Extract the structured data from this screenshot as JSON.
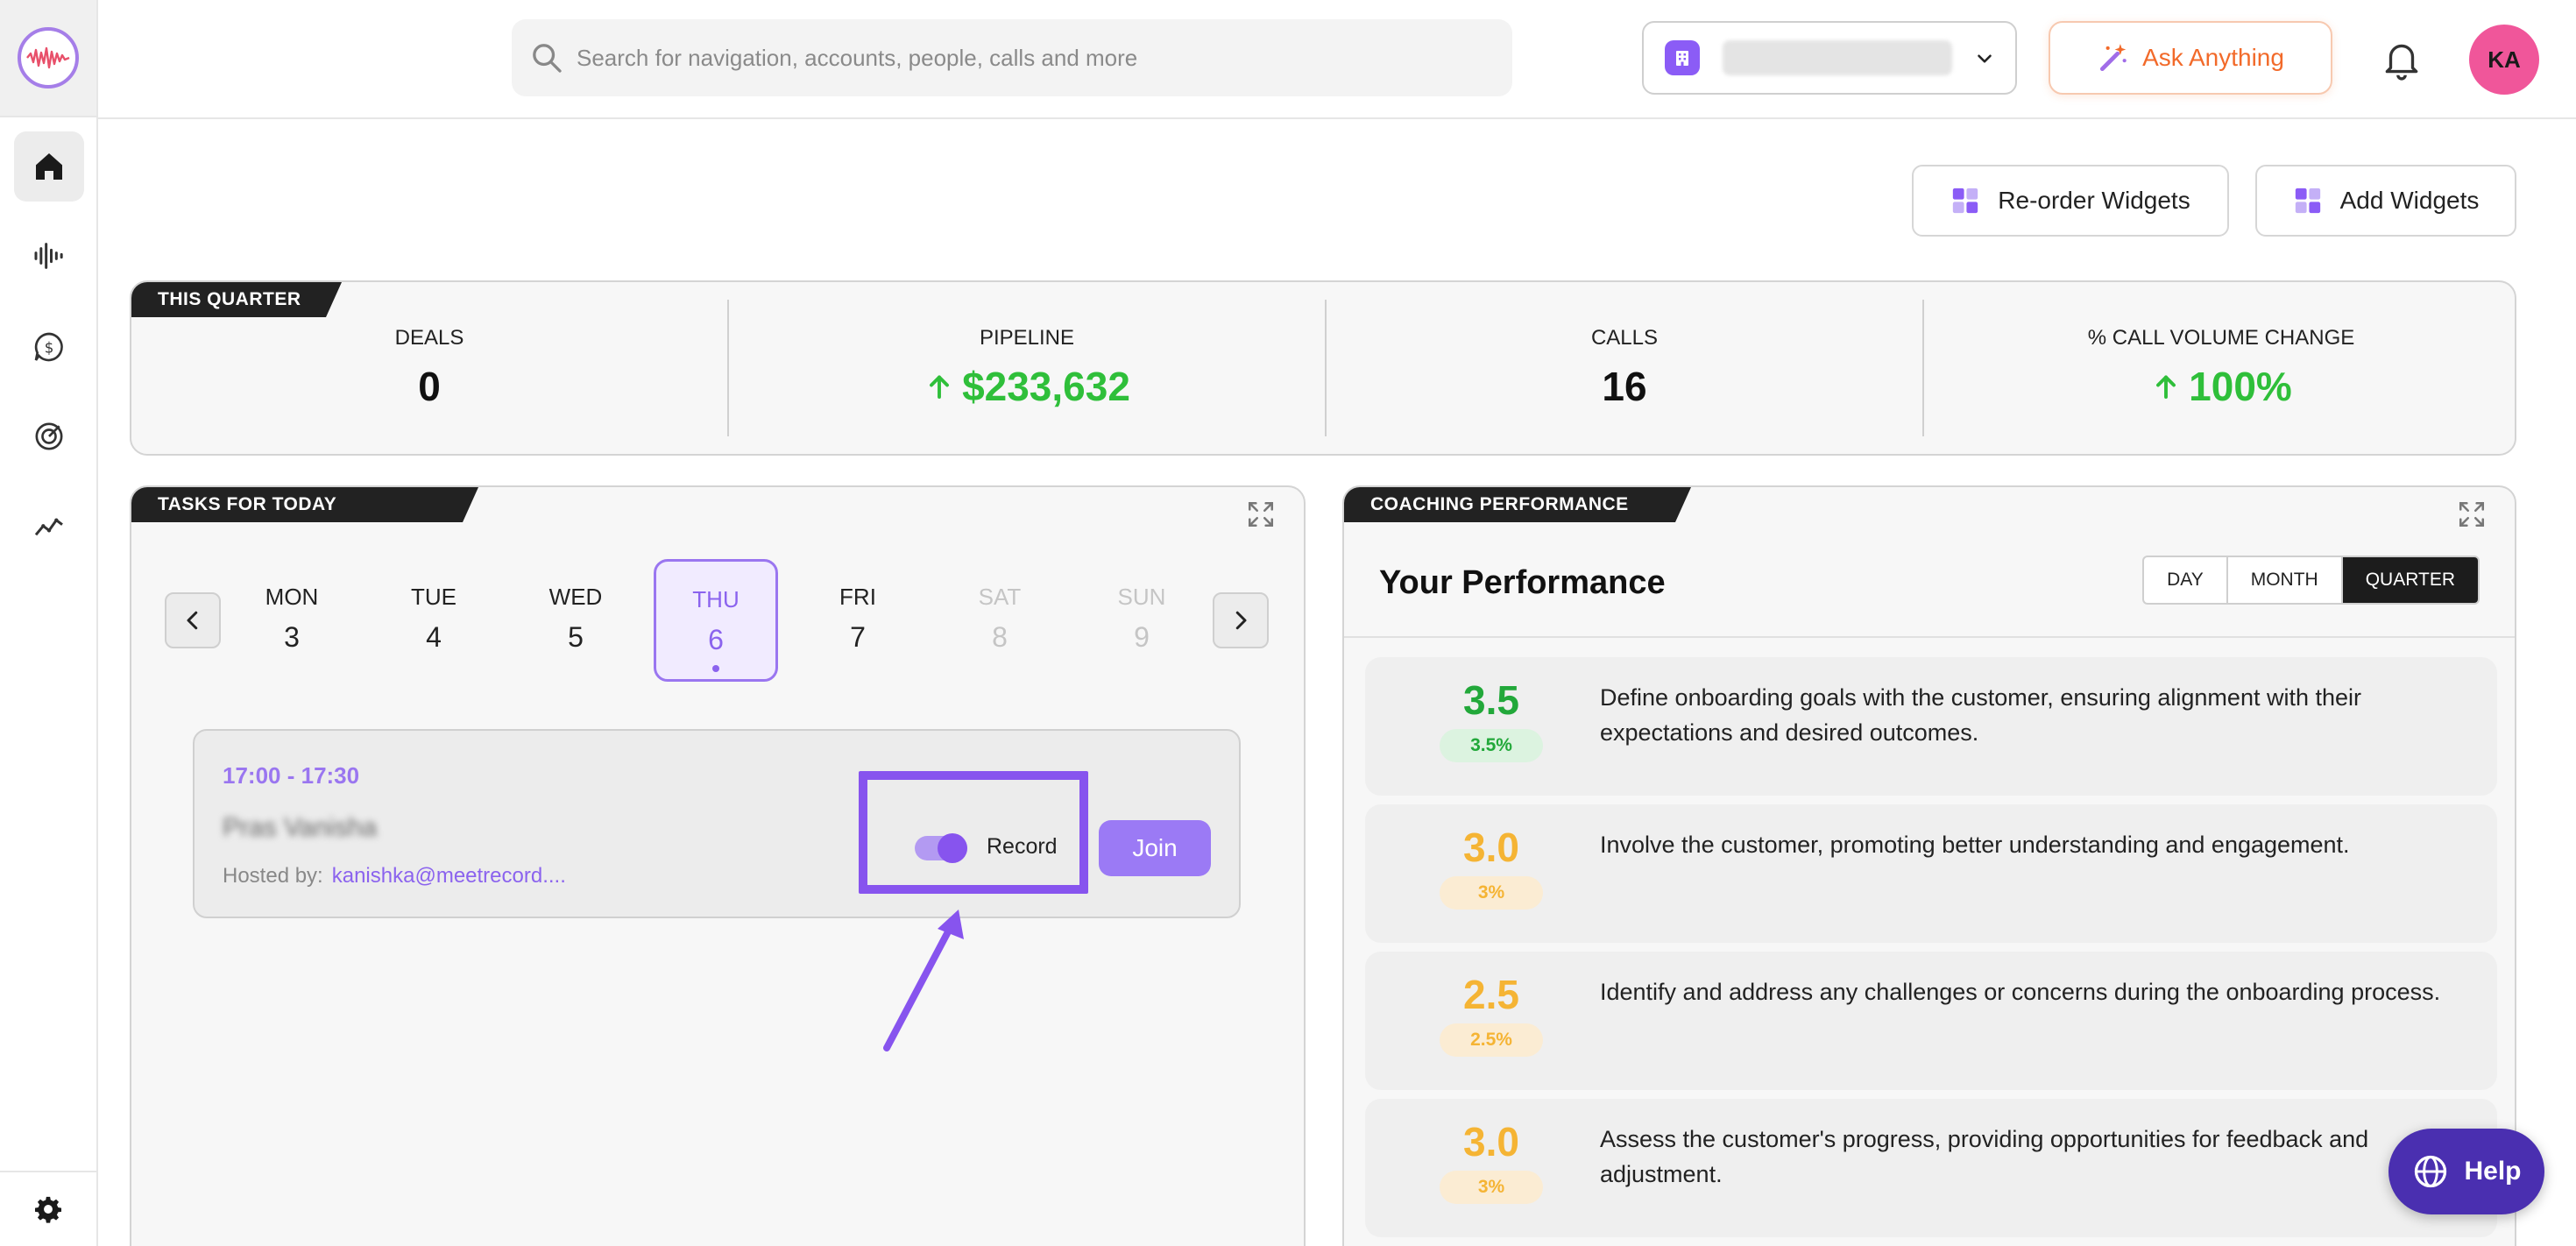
{
  "header": {
    "search_placeholder": "Search for navigation, accounts, people, calls and more",
    "ask_label": "Ask Anything",
    "avatar_initials": "KA"
  },
  "sidebar": {
    "items": [
      {
        "icon": "home-icon",
        "active": true
      },
      {
        "icon": "waveform-icon",
        "active": false
      },
      {
        "icon": "dollar-chat-icon",
        "active": false
      },
      {
        "icon": "target-icon",
        "active": false
      },
      {
        "icon": "trend-icon",
        "active": false
      }
    ],
    "bottom_icon": "settings-icon"
  },
  "widgets": {
    "reorder_label": "Re-order Widgets",
    "add_label": "Add Widgets"
  },
  "quarter": {
    "tag": "THIS QUARTER",
    "stats": [
      {
        "label": "DEALS",
        "value": "0",
        "trend": "none"
      },
      {
        "label": "PIPELINE",
        "value": "$233,632",
        "trend": "up"
      },
      {
        "label": "CALLS",
        "value": "16",
        "trend": "none"
      },
      {
        "label": "% CALL VOLUME CHANGE",
        "value": "100%",
        "trend": "up"
      }
    ]
  },
  "tasks": {
    "tag": "TASKS FOR TODAY",
    "days": [
      {
        "name": "MON",
        "date": "3"
      },
      {
        "name": "TUE",
        "date": "4"
      },
      {
        "name": "WED",
        "date": "5"
      },
      {
        "name": "THU",
        "date": "6"
      },
      {
        "name": "FRI",
        "date": "7"
      },
      {
        "name": "SAT",
        "date": "8"
      },
      {
        "name": "SUN",
        "date": "9"
      }
    ],
    "meeting": {
      "time": "17:00 - 17:30",
      "title": "Pras Vanisha",
      "host_label": "Hosted by:",
      "host": "kanishka@meetrecord....",
      "record_label": "Record",
      "join_label": "Join"
    }
  },
  "coaching": {
    "tag": "COACHING PERFORMANCE",
    "title": "Your Performance",
    "periods": [
      "DAY",
      "MONTH",
      "QUARTER"
    ],
    "selected_period": "QUARTER",
    "rows": [
      {
        "score": "3.5",
        "pct": "3.5%",
        "color": "green",
        "text": "Define onboarding goals with the customer, ensuring alignment with their expectations and desired outcomes."
      },
      {
        "score": "3.0",
        "pct": "3%",
        "color": "orange",
        "text": "Involve the customer, promoting better understanding and engagement."
      },
      {
        "score": "2.5",
        "pct": "2.5%",
        "color": "orange",
        "text": "Identify and address any challenges or concerns during the onboarding process."
      },
      {
        "score": "3.0",
        "pct": "3%",
        "color": "orange",
        "text": "Assess the customer's progress, providing opportunities for feedback and adjustment."
      }
    ]
  },
  "help_label": "Help",
  "colors": {
    "accent": "#8b5cf6",
    "green": "#2fbf3a",
    "orange": "#f5b434",
    "ask": "#f26a2a"
  }
}
